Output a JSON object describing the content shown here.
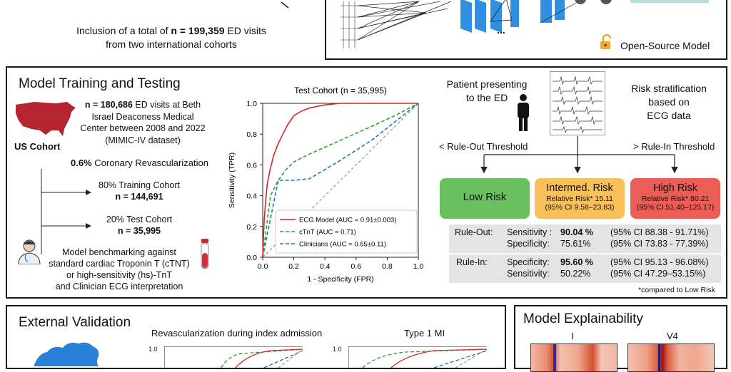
{
  "inclusion": {
    "prefix": "Inclusion of a total of ",
    "count": "n = 199,359",
    "suffix": " ED visits",
    "line2": "from two international cohorts"
  },
  "open_source": {
    "label": "Open-Source Model",
    "network_dots": "...",
    "lock_icon": "unlocked-padlock-icon"
  },
  "training": {
    "title": "Model Training and Testing",
    "cohort": {
      "name": "US Cohort",
      "count": "n = 180,686",
      "line1": " ED visits at Beth",
      "line2": "Israel Deaconess Medical",
      "line3": "Center between 2008 and 2022",
      "line4": "(MIMIC-IV dataset)"
    },
    "revasc": {
      "pct": "0.6%",
      "label": " Coronary Revascularization"
    },
    "train_split": {
      "label": "80% Training Cohort",
      "n": "n = 144,691"
    },
    "test_split": {
      "label": "20% Test Cohort",
      "n": "n = 35,995"
    },
    "benchmark": [
      "Model benchmarking against",
      "standard cardiac Troponin T (cTNT)",
      "or high-sensitivity (hs)-TnT",
      "and Clinician ECG interpretation"
    ]
  },
  "chart_data": {
    "type": "line",
    "title": "Test Cohort (n = 35,995)",
    "xlabel": "1 - Specificity (FPR)",
    "ylabel": "Sensitivity (TPR)",
    "xlim": [
      0,
      1
    ],
    "ylim": [
      0,
      1
    ],
    "ticks": [
      "0.0",
      "0.2",
      "0.4",
      "0.6",
      "0.8",
      "1.0"
    ],
    "legend_position": "bottom-right",
    "series": [
      {
        "name": "ECG Model (AUC = 0.91±0.003)",
        "color": "#d62728",
        "dash": "",
        "x": [
          0,
          0.005,
          0.01,
          0.02,
          0.03,
          0.05,
          0.07,
          0.1,
          0.13,
          0.16,
          0.2,
          0.25,
          0.3,
          0.4,
          0.5,
          0.6,
          0.7,
          0.8,
          1.0
        ],
        "y": [
          0,
          0.13,
          0.25,
          0.38,
          0.48,
          0.58,
          0.66,
          0.74,
          0.8,
          0.86,
          0.92,
          0.95,
          0.97,
          0.99,
          1.0,
          1.0,
          1.0,
          1.0,
          1.0
        ]
      },
      {
        "name": "cTnT (AUC = 0.71)",
        "color": "#2ca02c",
        "dash": "5,3",
        "x": [
          0,
          0.05,
          0.1,
          0.15,
          0.2,
          0.3,
          0.5,
          0.7,
          0.85,
          1.0
        ],
        "y": [
          0,
          0.4,
          0.5,
          0.57,
          0.62,
          0.67,
          0.76,
          0.85,
          0.92,
          1.0
        ]
      },
      {
        "name": "Clinicians (AUC = 0.65±0.11)",
        "color": "#1f77b4",
        "dash": "5,3",
        "x": [
          0,
          0.1,
          0.2,
          0.3,
          0.5,
          0.7,
          0.85,
          1.0
        ],
        "y": [
          0,
          0.5,
          0.5,
          0.51,
          0.63,
          0.76,
          0.88,
          1.0
        ]
      },
      {
        "name": "",
        "color": "#888888",
        "dash": "4,3",
        "x": [
          0,
          1
        ],
        "y": [
          0,
          1
        ]
      }
    ]
  },
  "stratification": {
    "patient": [
      "Patient presenting",
      "to the ED"
    ],
    "risk_label": [
      "Risk stratification",
      "based on",
      "ECG data"
    ],
    "rule_out_threshold": "< Rule-Out Threshold",
    "rule_in_threshold": "> Rule-In Threshold",
    "low": {
      "label": "Low Risk",
      "color": "#6abf5e"
    },
    "intermed": {
      "label": "Intermed. Risk",
      "rr": "Relative Risk* 15.11",
      "ci": "(95% CI 9.58–23.83)",
      "color": "#f7c05a"
    },
    "high": {
      "label": "High Risk",
      "rr": "Relative Risk* 80.21",
      "ci": "(95% CI 51.40–125.17)",
      "color": "#ec5d57"
    },
    "rule_out": {
      "label": "Rule-Out:",
      "m1": "Sensitivity :",
      "v1": "90.04 %",
      "ci1": "(95% CI 88.38 - 91.71%)",
      "m2": "Specificity:",
      "v2": "75.61%",
      "ci2": "(95% CI 73.83 - 77.39%)"
    },
    "rule_in": {
      "label": "Rule-In:",
      "m1": "Specificity:",
      "v1": "95.60 %",
      "ci1": "(95% CI 95.13 - 96.08%)",
      "m2": "Sensitivity:",
      "v2": "50.22%",
      "ci2": "(95% CI 47.29–53.15%)"
    },
    "footnote": "*compared to Low Risk"
  },
  "external": {
    "title": "External Validation",
    "chart1_title": "Revascularization during index admission",
    "chart2_title": "Type 1 MI",
    "tick_top": "1.0"
  },
  "explain": {
    "title": "Model Explainability",
    "lead1": "I",
    "lead2": "V4"
  }
}
